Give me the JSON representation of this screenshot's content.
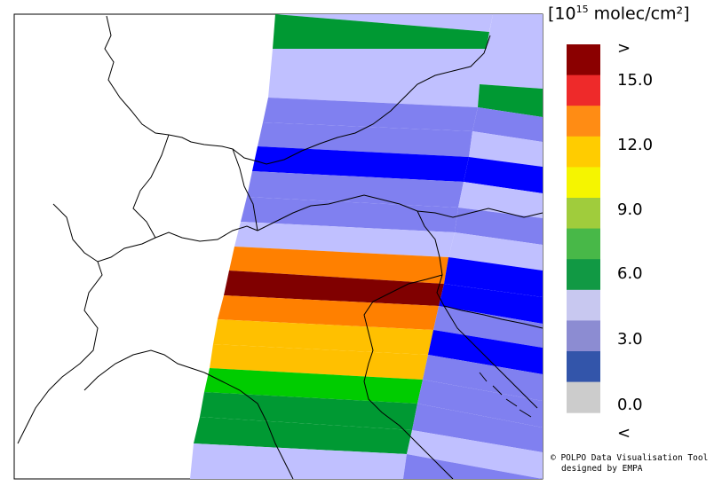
{
  "legend": {
    "unit_prefix": "[10",
    "unit_exp": "15",
    "unit_suffix": " molec/cm²]",
    "ticks": [
      ">",
      "15.0",
      "12.0",
      "9.0",
      "6.0",
      "3.0",
      "0.0",
      "<"
    ],
    "colors": [
      "#8b0000",
      "#ee2a2a",
      "#ff8c14",
      "#ffcc00",
      "#f5f500",
      "#a0cc3c",
      "#48b848",
      "#119944",
      "#c8c8f0",
      "#8c8cd2",
      "#3355aa",
      "#cccccc"
    ]
  },
  "credit": {
    "line1": "© POLPO Data Visualisation Tool",
    "line2": "designed by EMPA"
  },
  "map": {
    "colors": {
      "dark_green": "#009933",
      "light_blue": "#c0c0ff",
      "medium_blue": "#8080f0",
      "blue": "#0000ff",
      "orange": "#ff8000",
      "dark_red": "#800000",
      "amber": "#ffc000",
      "green": "#00cc00",
      "border": "#000000"
    }
  }
}
